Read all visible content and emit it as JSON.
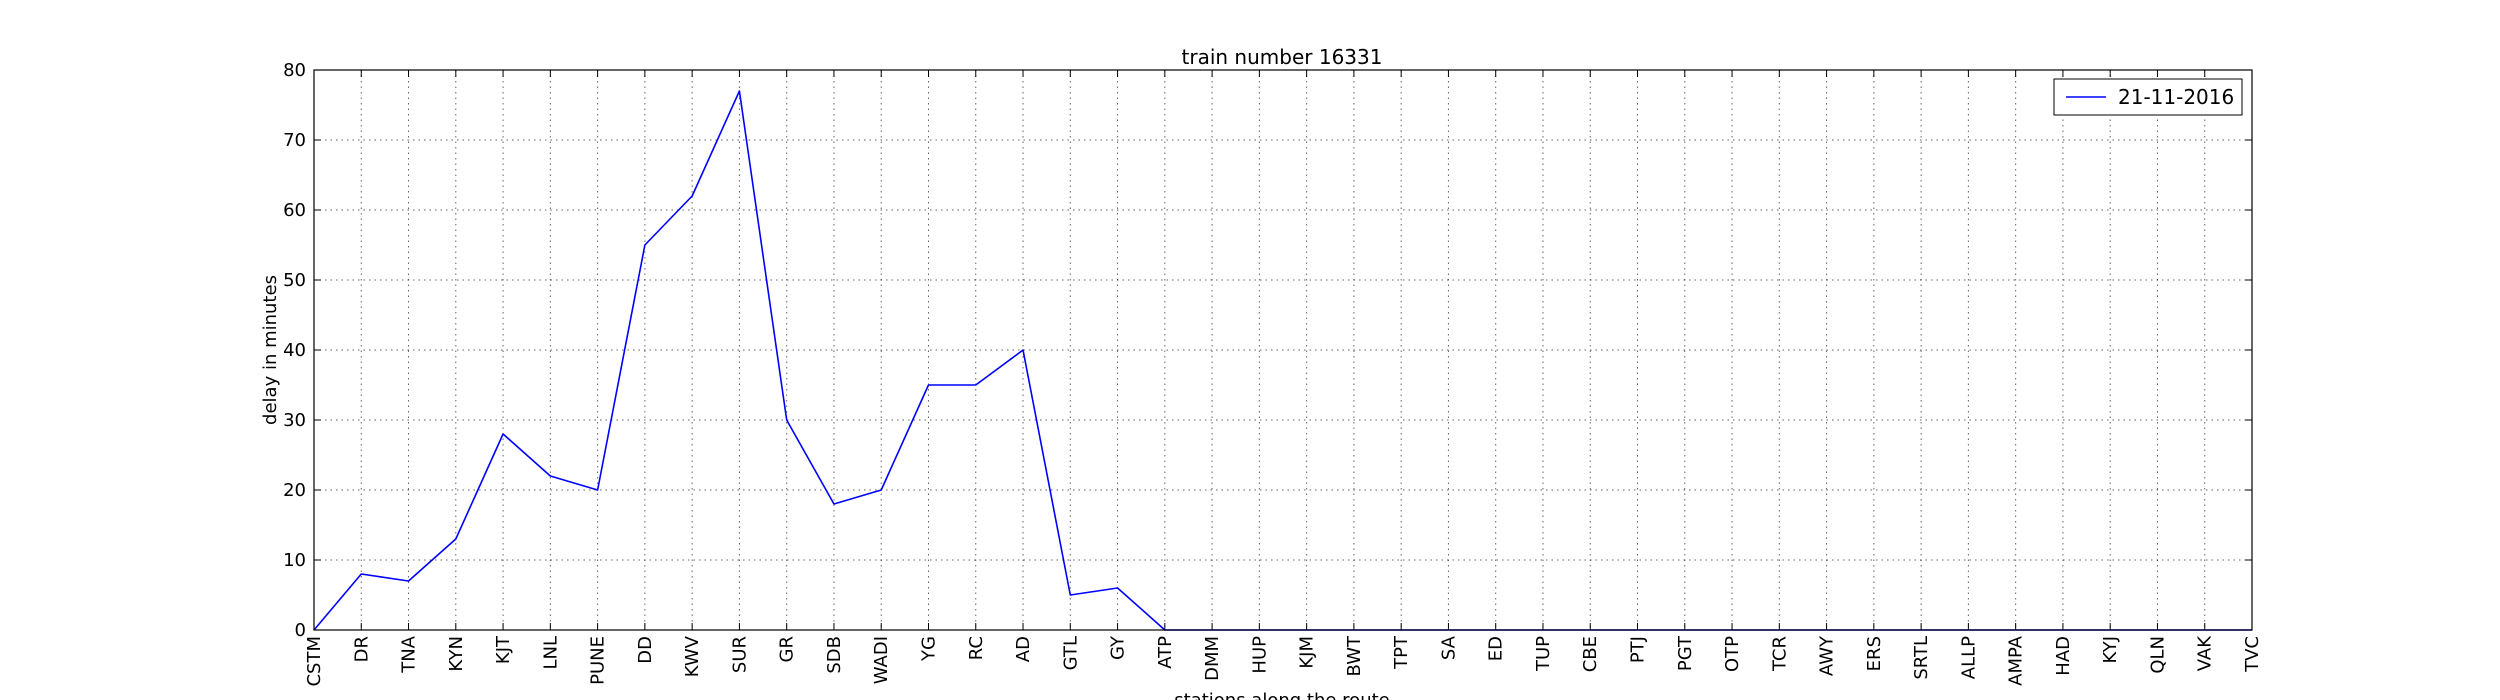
{
  "chart_data": {
    "type": "line",
    "title": "train number 16331",
    "xlabel": "stations along the route",
    "ylabel": "delay in minutes",
    "ylim": [
      0,
      80
    ],
    "yticks": [
      0,
      10,
      20,
      30,
      40,
      50,
      60,
      70,
      80
    ],
    "grid": true,
    "legend_position": "top-right",
    "categories": [
      "CSTM",
      "DR",
      "TNA",
      "KYN",
      "KJT",
      "LNL",
      "PUNE",
      "DD",
      "KWV",
      "SUR",
      "GR",
      "SDB",
      "WADI",
      "YG",
      "RC",
      "AD",
      "GTL",
      "GY",
      "ATP",
      "DMM",
      "HUP",
      "KJM",
      "BWT",
      "TPT",
      "SA",
      "ED",
      "TUP",
      "CBE",
      "PTJ",
      "PGT",
      "OTP",
      "TCR",
      "AWY",
      "ERS",
      "SRTL",
      "ALLP",
      "AMPA",
      "HAD",
      "KYJ",
      "QLN",
      "VAK",
      "TVC"
    ],
    "series": [
      {
        "name": "21-11-2016",
        "color": "#0000ff",
        "values": [
          0,
          8,
          7,
          13,
          28,
          22,
          20,
          55,
          62,
          77,
          30,
          18,
          20,
          35,
          35,
          40,
          5,
          6,
          0,
          0,
          0,
          0,
          0,
          0,
          0,
          0,
          0,
          0,
          0,
          0,
          0,
          0,
          0,
          0,
          0,
          0,
          0,
          0,
          0,
          0,
          0,
          0
        ]
      }
    ]
  }
}
